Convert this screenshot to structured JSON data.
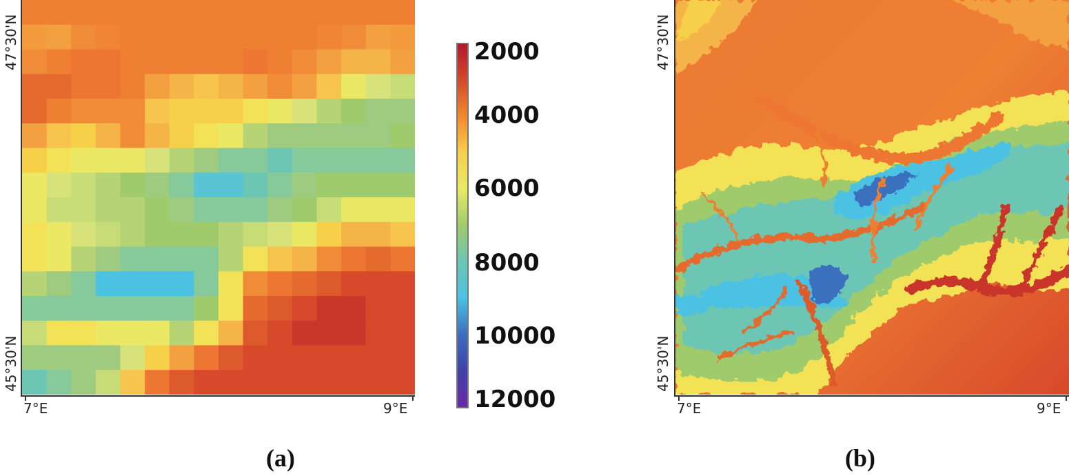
{
  "panels": [
    {
      "id": "a",
      "caption": "(a)",
      "type": "coarse-grid"
    },
    {
      "id": "b",
      "caption": "(b)",
      "type": "high-resolution"
    }
  ],
  "axis": {
    "lat_top": "47°30'N",
    "lat_bottom": "45°30'N",
    "lon_left": "7°E",
    "lon_right": "9°E"
  },
  "colorbar": {
    "labels": [
      "2000",
      "4000",
      "6000",
      "8000",
      "10000",
      "12000"
    ],
    "stops": [
      "#b2182b",
      "#d6492b",
      "#f08a2e",
      "#f7d04a",
      "#e8ea63",
      "#9fcb6c",
      "#6cc6b3",
      "#4cc2e3",
      "#3b6fbf",
      "#4040a8",
      "#6a2aa8"
    ]
  },
  "grid_a": {
    "rows": 16,
    "cols": 16,
    "colors": [
      [
        "#ee7f33",
        "#ee7f33",
        "#ee7f33",
        "#ee7f33",
        "#ee7f33",
        "#ee7f33",
        "#ee7f33",
        "#ee7f33",
        "#ee7f33",
        "#ee7f33",
        "#ee7f33",
        "#ee7f33",
        "#ee7f33",
        "#ee7f33",
        "#ee7f33",
        "#ee7f33"
      ],
      [
        "#f39b3d",
        "#f3a040",
        "#f08c37",
        "#ef8535",
        "#ee7f33",
        "#ee7f33",
        "#ee7f33",
        "#ee7f33",
        "#ee7f33",
        "#ee7f33",
        "#ee7f33",
        "#ee7f33",
        "#ef8535",
        "#f08c37",
        "#f3a040",
        "#f39b3d"
      ],
      [
        "#f08c37",
        "#ee7f33",
        "#ec7632",
        "#ec7632",
        "#ee7f33",
        "#ee7f33",
        "#ee7f33",
        "#ee7f33",
        "#ee7f33",
        "#ec7632",
        "#ee7f33",
        "#f08c37",
        "#f3a040",
        "#f5b448",
        "#f5b448",
        "#f3a040"
      ],
      [
        "#e56a2e",
        "#e56a2e",
        "#ec7632",
        "#ec7632",
        "#ee7f33",
        "#f3a040",
        "#f5b448",
        "#f7c44e",
        "#f5b448",
        "#f3a040",
        "#f08c37",
        "#f3a040",
        "#f7c44e",
        "#eae864",
        "#d8e27a",
        "#c7dc76"
      ],
      [
        "#e56a2e",
        "#ee7f33",
        "#f08c37",
        "#f08c37",
        "#f08c37",
        "#f7c44e",
        "#f7d04a",
        "#f7d04a",
        "#f7d04a",
        "#f3e257",
        "#eae864",
        "#d8e27a",
        "#b6d476",
        "#9fcb6c",
        "#9fcb80",
        "#9fcb80"
      ],
      [
        "#f3a040",
        "#f7c44e",
        "#f7d04a",
        "#f5b448",
        "#f08c37",
        "#f5b448",
        "#f7d04a",
        "#f3e257",
        "#eae864",
        "#b6d476",
        "#9fcb80",
        "#9fcb80",
        "#9fcb80",
        "#9fcb80",
        "#9fcb80",
        "#9fcb6c"
      ],
      [
        "#f7d04a",
        "#f3e257",
        "#eae864",
        "#eae864",
        "#eae864",
        "#d8e27a",
        "#b6d476",
        "#9fcb80",
        "#86c99a",
        "#86c99a",
        "#6cc6b3",
        "#86c99a",
        "#86c99a",
        "#86c99a",
        "#86c99a",
        "#86c99a"
      ],
      [
        "#eae864",
        "#d8e27a",
        "#c7dc76",
        "#b6d476",
        "#9fcb6c",
        "#9fcb80",
        "#86c99a",
        "#59c4d4",
        "#59c4d4",
        "#6cc6b3",
        "#86c99a",
        "#9fcb80",
        "#9fcb6c",
        "#9fcb6c",
        "#9fcb6c",
        "#9fcb6c"
      ],
      [
        "#eae864",
        "#c7dc76",
        "#c7dc76",
        "#b6d476",
        "#b6d476",
        "#9fcb6c",
        "#9fcb80",
        "#86c99a",
        "#86c99a",
        "#86c99a",
        "#9fcb80",
        "#9fcb6c",
        "#c7dc76",
        "#eae864",
        "#eae864",
        "#eae864"
      ],
      [
        "#f3e257",
        "#eae864",
        "#d8e27a",
        "#c7dc76",
        "#b6d476",
        "#9fcb6c",
        "#9fcb6c",
        "#9fcb6c",
        "#b6d476",
        "#c7dc76",
        "#d8e27a",
        "#eae864",
        "#f7d04a",
        "#f5b448",
        "#f5b448",
        "#f7c44e"
      ],
      [
        "#f3e257",
        "#eae864",
        "#b6d476",
        "#9fcb80",
        "#86c99a",
        "#86c99a",
        "#86c99a",
        "#86c99a",
        "#b6d476",
        "#f3e257",
        "#f7c44e",
        "#f5b448",
        "#f08c37",
        "#ec7632",
        "#e56a2e",
        "#ec7632"
      ],
      [
        "#b6d476",
        "#9fcb80",
        "#86c99a",
        "#4cc2e3",
        "#4cc2e3",
        "#4cc2e3",
        "#4cc2e3",
        "#86c99a",
        "#f3e257",
        "#f08c37",
        "#ec7632",
        "#e56a2e",
        "#dd5a2c",
        "#d6492b",
        "#d6492b",
        "#d6492b"
      ],
      [
        "#86c99a",
        "#86c99a",
        "#86c99a",
        "#86c99a",
        "#86c99a",
        "#86c99a",
        "#86c99a",
        "#9fcb6c",
        "#f3e257",
        "#e56a2e",
        "#dd5a2c",
        "#d6492b",
        "#c9362a",
        "#c9362a",
        "#d6492b",
        "#d6492b"
      ],
      [
        "#c7dc76",
        "#f3e257",
        "#f3e257",
        "#eae864",
        "#eae864",
        "#eae864",
        "#b6d476",
        "#f3e257",
        "#f5b448",
        "#dd5a2c",
        "#d6492b",
        "#c9362a",
        "#c9362a",
        "#c9362a",
        "#d6492b",
        "#d6492b"
      ],
      [
        "#9fcb80",
        "#9fcb80",
        "#9fcb80",
        "#9fcb80",
        "#d8e27a",
        "#f7d04a",
        "#f3a040",
        "#ec7632",
        "#dd5a2c",
        "#d6492b",
        "#d6492b",
        "#d6492b",
        "#d6492b",
        "#d6492b",
        "#d6492b",
        "#d6492b"
      ],
      [
        "#6cc6b3",
        "#86c99a",
        "#9fcb80",
        "#c7dc76",
        "#f7c44e",
        "#ec7632",
        "#dd5a2c",
        "#d6492b",
        "#d6492b",
        "#d6492b",
        "#d6492b",
        "#d6492b",
        "#d6492b",
        "#d6492b",
        "#d6492b",
        "#d6492b"
      ]
    ]
  }
}
